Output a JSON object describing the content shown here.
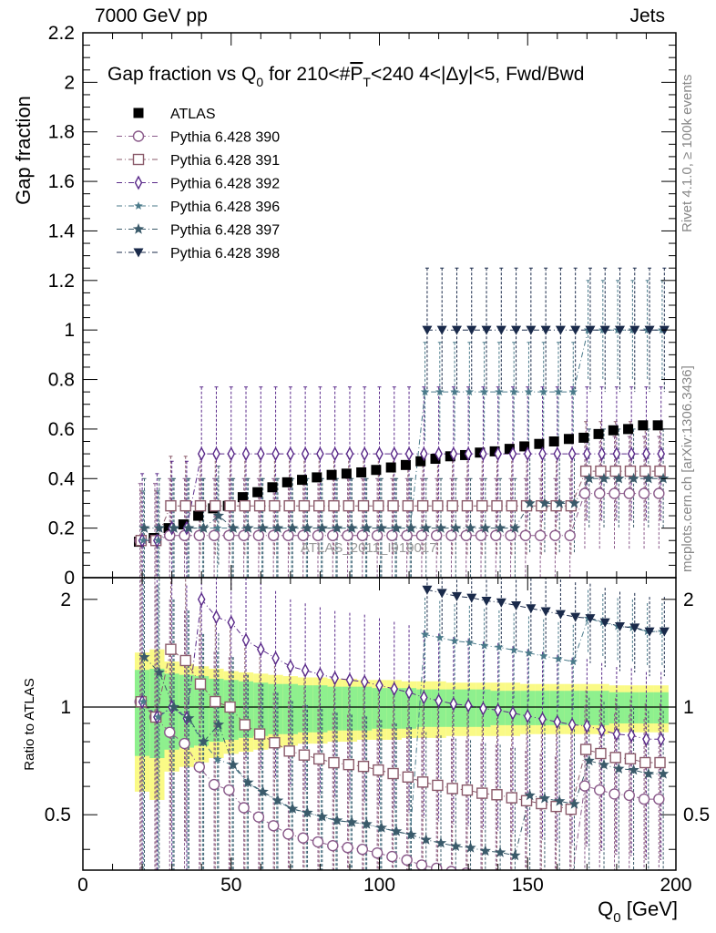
{
  "header": {
    "left": "7000 GeV pp",
    "right": "Jets"
  },
  "side_labels": {
    "rivet": "Rivet 4.1.0, ≥ 100k events",
    "mcplots": "mcplots.cern.ch [arXiv:1306.3436]"
  },
  "chart_data": {
    "type": "scatter",
    "title": "Gap fraction vs Q₀ for 210<#P̅T<240  4<|Δy|<5, Fwd/Bwd",
    "title_parts": {
      "a": "Gap fraction vs Q",
      "sub0": "0",
      "b": " for 210<#",
      "p": "P",
      "t": "T",
      "c": "<240  4<|Δy|<5, Fwd/Bwd"
    },
    "watermark": "ATLAS_2011_I919017",
    "xlabel": "Q₀ [GeV]",
    "xlabel_parts": {
      "main": "Q",
      "sub": "0",
      "unit": " [GeV]"
    },
    "ylabel": "Gap fraction",
    "ratio_ylabel": "Ratio to ATLAS",
    "xlim": [
      0,
      200
    ],
    "ylim": [
      0,
      2.2
    ],
    "ratio_ylim": [
      0.35,
      2.3
    ],
    "x_ticks": [
      "0",
      "50",
      "100",
      "150",
      "200"
    ],
    "y_ticks": [
      "0",
      "0.2",
      "0.4",
      "0.6",
      "0.8",
      "1",
      "1.2",
      "1.4",
      "1.6",
      "1.8",
      "2",
      "2.2"
    ],
    "ratio_ticks": [
      "0.5",
      "1",
      "2"
    ],
    "x": [
      20,
      25,
      30,
      35,
      40,
      45,
      50,
      55,
      60,
      65,
      70,
      75,
      80,
      85,
      90,
      95,
      100,
      105,
      110,
      115,
      120,
      125,
      130,
      135,
      140,
      145,
      150,
      155,
      160,
      165,
      170,
      175,
      180,
      185,
      190,
      195
    ],
    "series": [
      {
        "name": "ATLAS",
        "marker": "square-filled",
        "color": "#000000",
        "values": [
          0.145,
          0.16,
          0.2,
          0.215,
          0.25,
          0.28,
          0.29,
          0.325,
          0.345,
          0.365,
          0.385,
          0.395,
          0.405,
          0.415,
          0.42,
          0.425,
          0.435,
          0.445,
          0.455,
          0.47,
          0.48,
          0.49,
          0.495,
          0.505,
          0.51,
          0.52,
          0.53,
          0.54,
          0.55,
          0.56,
          0.565,
          0.58,
          0.595,
          0.6,
          0.615,
          0.615
        ]
      },
      {
        "name": "Pythia 6.428 390",
        "marker": "circle-open",
        "color": "#8a5a8a",
        "values": [
          0.15,
          0.15,
          0.17,
          0.17,
          0.17,
          0.17,
          0.17,
          0.17,
          0.17,
          0.17,
          0.17,
          0.17,
          0.17,
          0.17,
          0.17,
          0.17,
          0.17,
          0.17,
          0.17,
          0.17,
          0.17,
          0.17,
          0.17,
          0.17,
          0.17,
          0.17,
          0.17,
          0.17,
          0.17,
          0.17,
          0.34,
          0.34,
          0.34,
          0.34,
          0.34,
          0.34
        ]
      },
      {
        "name": "Pythia 6.428 391",
        "marker": "square-open",
        "color": "#8a5a6a",
        "values": [
          0.15,
          0.15,
          0.29,
          0.29,
          0.29,
          0.29,
          0.29,
          0.29,
          0.29,
          0.29,
          0.29,
          0.29,
          0.29,
          0.29,
          0.29,
          0.29,
          0.29,
          0.29,
          0.29,
          0.29,
          0.29,
          0.29,
          0.29,
          0.29,
          0.29,
          0.29,
          0.29,
          0.29,
          0.29,
          0.29,
          0.43,
          0.43,
          0.43,
          0.43,
          0.43,
          0.43
        ]
      },
      {
        "name": "Pythia 6.428 392",
        "marker": "diamond-open",
        "color": "#5a2a8a",
        "values": [
          0.15,
          0.15,
          0.2,
          0.2,
          0.5,
          0.5,
          0.5,
          0.5,
          0.5,
          0.5,
          0.5,
          0.5,
          0.5,
          0.5,
          0.5,
          0.5,
          0.5,
          0.5,
          0.5,
          0.5,
          0.5,
          0.5,
          0.5,
          0.5,
          0.5,
          0.5,
          0.5,
          0.5,
          0.5,
          0.5,
          0.5,
          0.5,
          0.5,
          0.5,
          0.5,
          0.5
        ]
      },
      {
        "name": "Pythia 6.428 396",
        "marker": "star-small",
        "color": "#4a7a8a",
        "values": [
          0.15,
          0.15,
          0.2,
          0.2,
          0.2,
          0.2,
          0.2,
          0.2,
          0.2,
          0.2,
          0.2,
          0.2,
          0.2,
          0.2,
          0.2,
          0.2,
          0.2,
          0.2,
          0.2,
          0.75,
          0.75,
          0.75,
          0.75,
          0.75,
          0.75,
          0.75,
          0.75,
          0.75,
          0.75,
          0.75,
          1.0,
          1.0,
          1.0,
          1.0,
          1.0,
          1.0
        ]
      },
      {
        "name": "Pythia 6.428 397",
        "marker": "star",
        "color": "#3a5a6a",
        "values": [
          0.2,
          0.2,
          0.2,
          0.2,
          0.2,
          0.25,
          0.2,
          0.2,
          0.2,
          0.2,
          0.2,
          0.2,
          0.2,
          0.2,
          0.2,
          0.2,
          0.2,
          0.2,
          0.2,
          0.2,
          0.2,
          0.2,
          0.2,
          0.2,
          0.2,
          0.2,
          0.3,
          0.3,
          0.3,
          0.3,
          0.4,
          0.4,
          0.4,
          0.4,
          0.4,
          0.4
        ]
      },
      {
        "name": "Pythia 6.428 398",
        "marker": "triangle-down",
        "color": "#1a2a4a",
        "values": [
          null,
          null,
          null,
          null,
          null,
          null,
          null,
          null,
          null,
          null,
          null,
          null,
          null,
          null,
          null,
          null,
          null,
          null,
          null,
          1.0,
          1.0,
          1.0,
          1.0,
          1.0,
          1.0,
          1.0,
          1.0,
          1.0,
          1.0,
          1.0,
          1.0,
          1.0,
          1.0,
          1.0,
          1.0,
          1.0
        ]
      }
    ],
    "ratio_band_inner": [
      0.27,
      0.28,
      0.24,
      0.23,
      0.22,
      0.2,
      0.19,
      0.18,
      0.17,
      0.16,
      0.16,
      0.15,
      0.15,
      0.14,
      0.14,
      0.14,
      0.13,
      0.13,
      0.13,
      0.12,
      0.12,
      0.12,
      0.12,
      0.12,
      0.11,
      0.11,
      0.11,
      0.11,
      0.11,
      0.11,
      0.11,
      0.11,
      0.1,
      0.1,
      0.1,
      0.1
    ],
    "ratio_band_outer": [
      0.42,
      0.45,
      0.34,
      0.32,
      0.3,
      0.28,
      0.26,
      0.25,
      0.24,
      0.23,
      0.22,
      0.21,
      0.21,
      0.2,
      0.2,
      0.19,
      0.19,
      0.19,
      0.18,
      0.18,
      0.18,
      0.17,
      0.17,
      0.17,
      0.17,
      0.17,
      0.16,
      0.16,
      0.16,
      0.16,
      0.16,
      0.16,
      0.15,
      0.15,
      0.15,
      0.15
    ],
    "legend_position": "top-left"
  },
  "colors": {
    "band_inner": "#8ef08e",
    "band_outer": "#fafa86",
    "axis": "#000000"
  }
}
